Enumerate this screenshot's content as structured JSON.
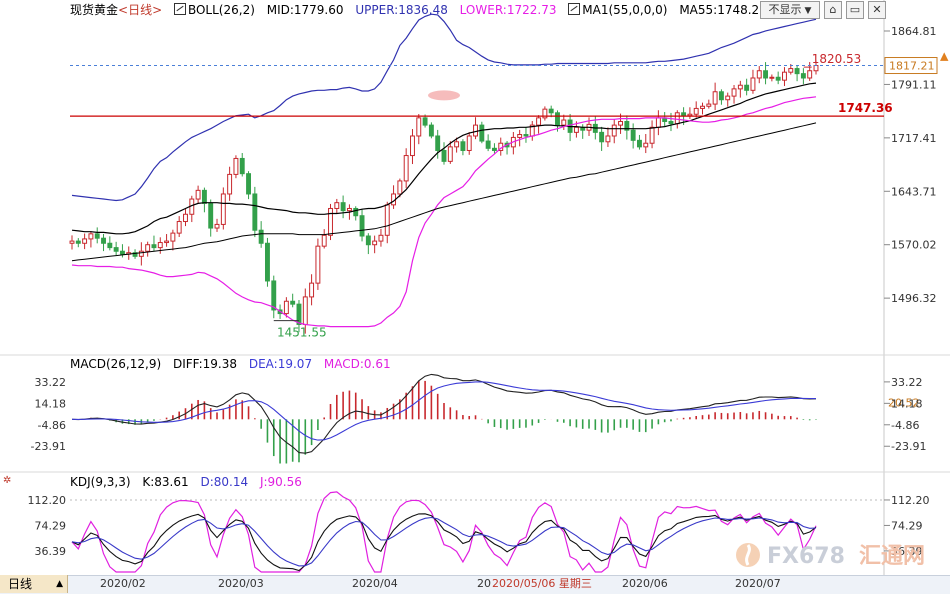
{
  "colors": {
    "bull": "#c8282d",
    "bear": "#33a04a",
    "boll_band": "#3032b0",
    "boll_lower": "#e61ee6",
    "ma": "#000000",
    "resist": "#cc0000",
    "macd_diff": "#222222",
    "macd_dea": "#3b3bd6",
    "kdj_k": "#111111",
    "kdj_d": "#3939c8",
    "kdj_j": "#e020e0",
    "dashed": "#4a7fd8"
  },
  "legend_main": {
    "name": "现货黄金",
    "period": "<日线>",
    "boll": "BOLL(26,2)",
    "mid": "MID:1779.60",
    "upper": "UPPER:1836.48",
    "lower": "LOWER:1722.73",
    "ma": "MA1(55,0,0,0)",
    "ma55": "MA55:1748.2"
  },
  "legend_macd": {
    "name": "MACD(26,12,9)",
    "diff": "DIFF:19.38",
    "dea": "DEA:19.07",
    "macd": "MACD:0.61"
  },
  "legend_kdj": {
    "name": "KDJ(9,3,3)",
    "k": "K:83.61",
    "d": "D:80.14",
    "j": "J:90.56"
  },
  "controls": {
    "hide": "不显示",
    "hide_arrow": "▼",
    "pin": "⌂",
    "restore": "▭",
    "close": "✕"
  },
  "period_tab": {
    "label": "日线",
    "arrow": "▲"
  },
  "x_axis_labels": [
    "2020/02",
    "2020/03",
    "2020/04",
    "20",
    "2020/05/06 星期三",
    "2020/06",
    "2020/07"
  ],
  "annotations": {
    "high_value": "1820.53",
    "low_value": "1451.55",
    "resist_value": "1747.36",
    "current_price": "1817.21"
  },
  "watermark": {
    "text": "FX678",
    "cn": "汇通网"
  },
  "chart_data": [
    {
      "type": "candlestick",
      "title": "现货黄金",
      "ylim": [
        1422,
        1880
      ],
      "y_ticks": [
        1864.81,
        1791.11,
        1717.41,
        1643.71,
        1570.02,
        1496.32
      ],
      "y_tick_labels": [
        "1864.81",
        "1791.11",
        "1717.41",
        "1643.71",
        "1570.02",
        "1496.32"
      ],
      "resistance_line": 1747.36,
      "current_price_line": 1817.21,
      "closes": [
        1575,
        1572,
        1578,
        1585,
        1579,
        1572,
        1566,
        1561,
        1557,
        1559,
        1554,
        1561,
        1570,
        1566,
        1573,
        1575,
        1586,
        1602,
        1612,
        1633,
        1645,
        1627,
        1593,
        1598,
        1640,
        1667,
        1689,
        1668,
        1640,
        1590,
        1572,
        1520,
        1480,
        1475,
        1492,
        1488,
        1460,
        1498,
        1517,
        1568,
        1583,
        1620,
        1628,
        1617,
        1620,
        1610,
        1582,
        1570,
        1575,
        1583,
        1625,
        1640,
        1658,
        1693,
        1720,
        1745,
        1735,
        1720,
        1700,
        1685,
        1705,
        1712,
        1700,
        1720,
        1735,
        1713,
        1703,
        1700,
        1710,
        1705,
        1718,
        1722,
        1720,
        1735,
        1745,
        1757,
        1752,
        1735,
        1742,
        1725,
        1732,
        1728,
        1736,
        1725,
        1712,
        1720,
        1735,
        1740,
        1728,
        1714,
        1705,
        1710,
        1732,
        1745,
        1740,
        1737,
        1752,
        1748,
        1750,
        1758,
        1761,
        1764,
        1781,
        1770,
        1775,
        1785,
        1790,
        1783,
        1800,
        1810,
        1800,
        1801,
        1797,
        1808,
        1813,
        1806,
        1800,
        1810,
        1817.21
      ],
      "boll_upper": [
        1638,
        1637,
        1636,
        1635,
        1634,
        1633,
        1632,
        1631,
        1632,
        1636,
        1640,
        1650,
        1662,
        1675,
        1685,
        1690,
        1698,
        1705,
        1712,
        1718,
        1722,
        1726,
        1730,
        1735,
        1740,
        1744,
        1748,
        1749,
        1750,
        1745,
        1748,
        1752,
        1755,
        1762,
        1770,
        1775,
        1778,
        1780,
        1782,
        1783,
        1783,
        1784,
        1784,
        1786,
        1787,
        1785,
        1782,
        1782,
        1785,
        1794,
        1810,
        1825,
        1845,
        1855,
        1868,
        1880,
        1885,
        1888,
        1887,
        1878,
        1866,
        1852,
        1846,
        1842,
        1836,
        1830,
        1825,
        1822,
        1821,
        1819,
        1818,
        1818,
        1818,
        1818,
        1818,
        1819,
        1819,
        1820,
        1820,
        1820,
        1820,
        1820,
        1820,
        1820,
        1820,
        1820,
        1821,
        1821,
        1821,
        1821,
        1821,
        1821,
        1822,
        1823,
        1823,
        1824,
        1825,
        1826,
        1828,
        1830,
        1832,
        1834,
        1838,
        1842,
        1845,
        1848,
        1852,
        1856,
        1860,
        1862,
        1865,
        1867,
        1869,
        1871,
        1873,
        1875,
        1877,
        1879,
        1881
      ],
      "boll_mid": [
        1590,
        1589,
        1588,
        1588,
        1587,
        1587,
        1586,
        1585,
        1585,
        1586,
        1588,
        1592,
        1596,
        1602,
        1606,
        1608,
        1612,
        1616,
        1620,
        1624,
        1627,
        1628,
        1628,
        1628,
        1627,
        1627,
        1626,
        1626,
        1625,
        1624,
        1622,
        1620,
        1619,
        1618,
        1617,
        1615,
        1614,
        1614,
        1613,
        1612,
        1612,
        1613,
        1613,
        1614,
        1615,
        1617,
        1619,
        1620,
        1620,
        1622,
        1625,
        1630,
        1638,
        1646,
        1657,
        1668,
        1678,
        1688,
        1697,
        1703,
        1710,
        1716,
        1721,
        1724,
        1726,
        1728,
        1729,
        1730,
        1730,
        1731,
        1731,
        1732,
        1732,
        1733,
        1734,
        1735,
        1735,
        1734,
        1734,
        1733,
        1733,
        1732,
        1732,
        1731,
        1731,
        1730,
        1730,
        1730,
        1730,
        1730,
        1730,
        1730,
        1731,
        1732,
        1733,
        1735,
        1737,
        1739,
        1741,
        1744,
        1747,
        1750,
        1753,
        1756,
        1759,
        1762,
        1765,
        1769,
        1772,
        1775,
        1778,
        1780,
        1782,
        1784,
        1786,
        1788,
        1790,
        1792,
        1793
      ],
      "boll_lower": [
        1542,
        1541,
        1541,
        1541,
        1540,
        1540,
        1540,
        1539,
        1539,
        1537,
        1536,
        1535,
        1533,
        1531,
        1528,
        1526,
        1526,
        1527,
        1528,
        1529,
        1532,
        1531,
        1527,
        1523,
        1517,
        1510,
        1503,
        1498,
        1494,
        1491,
        1490,
        1487,
        1484,
        1478,
        1472,
        1466,
        1462,
        1460,
        1459,
        1458,
        1458,
        1457,
        1457,
        1457,
        1457,
        1457,
        1457,
        1457,
        1458,
        1462,
        1470,
        1476,
        1485,
        1505,
        1548,
        1580,
        1600,
        1612,
        1625,
        1635,
        1640,
        1645,
        1650,
        1660,
        1672,
        1680,
        1688,
        1695,
        1703,
        1708,
        1712,
        1715,
        1718,
        1720,
        1722,
        1725,
        1728,
        1730,
        1733,
        1735,
        1737,
        1739,
        1741,
        1742,
        1743,
        1743,
        1743,
        1744,
        1744,
        1744,
        1744,
        1745,
        1745,
        1745,
        1745,
        1744,
        1743,
        1742,
        1741,
        1740,
        1739,
        1739,
        1740,
        1742,
        1743,
        1745,
        1747,
        1750,
        1752,
        1755,
        1758,
        1760,
        1763,
        1766,
        1768,
        1770,
        1772,
        1773,
        1774
      ],
      "ma55": [
        1548,
        1549,
        1550,
        1551,
        1552,
        1553,
        1554,
        1555,
        1556,
        1557,
        1558,
        1559,
        1560,
        1561,
        1562,
        1563,
        1564,
        1565,
        1566,
        1568,
        1570,
        1572,
        1573,
        1574,
        1576,
        1578,
        1580,
        1582,
        1583,
        1584,
        1585,
        1585,
        1585,
        1585,
        1585,
        1585,
        1584,
        1584,
        1584,
        1584,
        1584,
        1585,
        1586,
        1587,
        1588,
        1589,
        1590,
        1591,
        1592,
        1594,
        1596,
        1599,
        1602,
        1605,
        1608,
        1611,
        1614,
        1617,
        1620,
        1622,
        1624,
        1626,
        1628,
        1630,
        1632,
        1634,
        1636,
        1638,
        1640,
        1642,
        1644,
        1646,
        1648,
        1650,
        1652,
        1654,
        1656,
        1658,
        1660,
        1662,
        1663,
        1665,
        1667,
        1668,
        1670,
        1672,
        1674,
        1676,
        1678,
        1680,
        1682,
        1684,
        1686,
        1688,
        1690,
        1692,
        1694,
        1696,
        1698,
        1700,
        1702,
        1704,
        1706,
        1708,
        1710,
        1712,
        1714,
        1716,
        1718,
        1720,
        1722,
        1724,
        1726,
        1728,
        1730,
        1732,
        1734,
        1736,
        1738
      ],
      "high_label": 1820.53,
      "low_label": 1451.55
    },
    {
      "type": "macd",
      "ylim": [
        -45,
        42
      ],
      "y_ticks": [
        33.22,
        14.18,
        -4.86,
        -23.91
      ],
      "y_tick_labels": [
        "33.22",
        "14.18",
        "-4.86",
        "-23.91"
      ],
      "diff": 19.38,
      "dea": 19.07,
      "macd": 0.61,
      "current_value_label": "20.52"
    },
    {
      "type": "kdj",
      "ylim": [
        5,
        130
      ],
      "y_ticks": [
        112.2,
        74.29,
        36.39
      ],
      "y_tick_labels": [
        "112.20",
        "74.29",
        "36.39"
      ],
      "k": 83.61,
      "d": 80.14,
      "j": 90.56
    }
  ]
}
